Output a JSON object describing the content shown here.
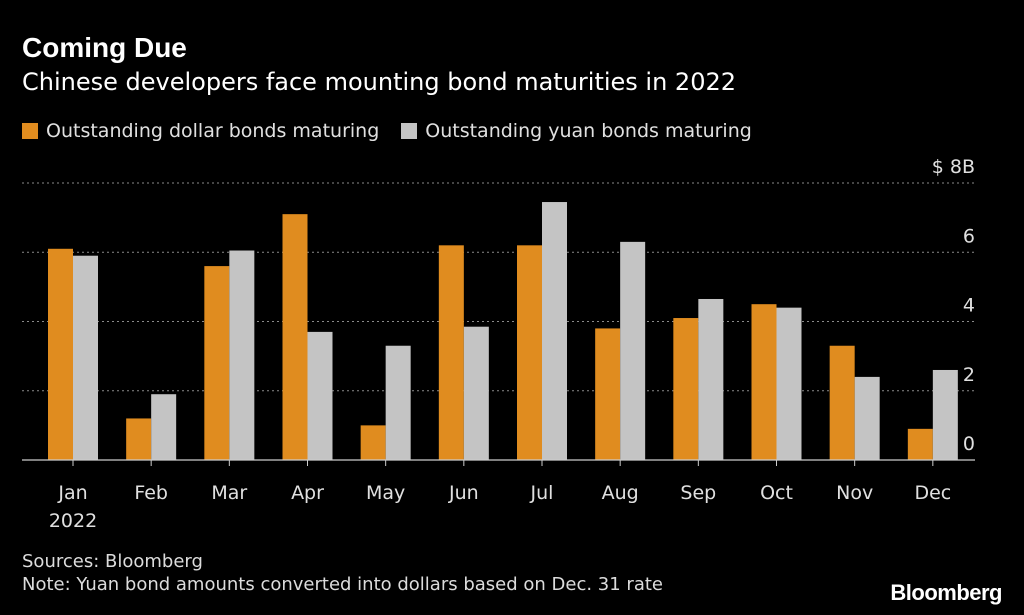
{
  "header": {
    "title": "Coming Due",
    "subtitle": "Chinese developers face mounting bond maturities in 2022"
  },
  "legend": {
    "dollar_label": "Outstanding dollar bonds maturing",
    "yuan_label": "Outstanding yuan bonds maturing"
  },
  "colors": {
    "dollar": "#e08c1f",
    "yuan": "#c4c4c4",
    "background": "#000000",
    "grid": "#8a8a8a"
  },
  "chart_data": {
    "type": "bar",
    "categories": [
      "Jan",
      "Feb",
      "Mar",
      "Apr",
      "May",
      "Jun",
      "Jul",
      "Aug",
      "Sep",
      "Oct",
      "Nov",
      "Dec"
    ],
    "x_sublabel": "2022",
    "series": [
      {
        "name": "Outstanding dollar bonds maturing",
        "values": [
          6.1,
          1.2,
          5.6,
          7.1,
          1.0,
          6.2,
          6.2,
          3.8,
          4.1,
          4.5,
          3.3,
          0.9
        ]
      },
      {
        "name": "Outstanding yuan bonds maturing",
        "values": [
          5.9,
          1.9,
          6.05,
          3.7,
          3.3,
          3.85,
          7.45,
          6.3,
          4.65,
          4.4,
          2.4,
          2.6
        ]
      }
    ],
    "yticks": [
      {
        "value": 0,
        "label": "0"
      },
      {
        "value": 2,
        "label": "2"
      },
      {
        "value": 4,
        "label": "4"
      },
      {
        "value": 6,
        "label": "6"
      },
      {
        "value": 8,
        "label": "$ 8B"
      }
    ],
    "ylim": [
      0,
      8
    ],
    "grid": true,
    "legend_position": "top-left"
  },
  "footer": {
    "sources": "Sources: Bloomberg",
    "note": "Note: Yuan bond amounts converted into dollars based on Dec. 31 rate",
    "brand": "Bloomberg"
  }
}
